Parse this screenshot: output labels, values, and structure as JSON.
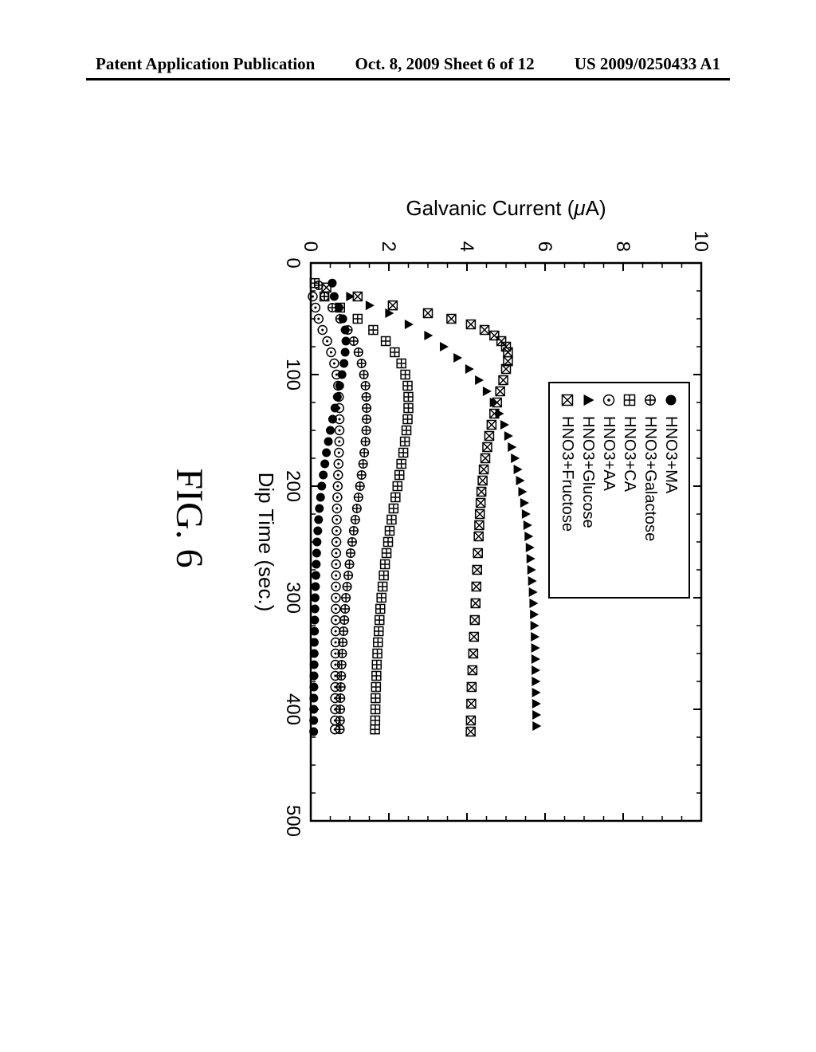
{
  "header": {
    "left": "Patent Application Publication",
    "center": "Oct. 8, 2009  Sheet 6 of 12",
    "right": "US 2009/0250433 A1"
  },
  "figure_label": "FIG. 6",
  "chart": {
    "type": "scatter",
    "xlabel": "Dip Time (sec.)",
    "ylabel": "Galvanic Current (μA)",
    "label_fontsize": 26,
    "tick_fontsize": 24,
    "xlim": [
      0,
      500
    ],
    "ylim": [
      0,
      10
    ],
    "xticks": [
      0,
      100,
      200,
      300,
      400,
      500
    ],
    "yticks": [
      0,
      2,
      4,
      6,
      8,
      10
    ],
    "background_color": "#ffffff",
    "axis_color": "#000000",
    "tick_length": 10,
    "legend": {
      "position": "top-center-right",
      "border_color": "#000000",
      "items": [
        {
          "marker": "filled_circle",
          "label": "HNO3+MA"
        },
        {
          "marker": "open_plus_diamond",
          "label": "HNO3+Galactose"
        },
        {
          "marker": "box_plus",
          "label": "HNO3+CA"
        },
        {
          "marker": "dot_circle",
          "label": "HNO3+AA"
        },
        {
          "marker": "filled_triangle",
          "label": "HNO3+Glucose"
        },
        {
          "marker": "box_x",
          "label": "HNO3+Fructose"
        }
      ]
    },
    "marker_size": 11,
    "series": [
      {
        "name": "HNO3+MA",
        "marker": "filled_circle",
        "color": "#000000",
        "points": [
          [
            18,
            0.55
          ],
          [
            30,
            0.6
          ],
          [
            40,
            0.72
          ],
          [
            50,
            0.82
          ],
          [
            60,
            0.88
          ],
          [
            70,
            0.9
          ],
          [
            80,
            0.88
          ],
          [
            90,
            0.85
          ],
          [
            100,
            0.8
          ],
          [
            110,
            0.74
          ],
          [
            120,
            0.68
          ],
          [
            130,
            0.62
          ],
          [
            140,
            0.56
          ],
          [
            150,
            0.5
          ],
          [
            160,
            0.45
          ],
          [
            170,
            0.4
          ],
          [
            180,
            0.36
          ],
          [
            190,
            0.32
          ],
          [
            200,
            0.28
          ],
          [
            210,
            0.25
          ],
          [
            220,
            0.22
          ],
          [
            230,
            0.2
          ],
          [
            240,
            0.18
          ],
          [
            250,
            0.16
          ],
          [
            260,
            0.15
          ],
          [
            270,
            0.14
          ],
          [
            280,
            0.13
          ],
          [
            290,
            0.12
          ],
          [
            300,
            0.11
          ],
          [
            310,
            0.105
          ],
          [
            320,
            0.1
          ],
          [
            330,
            0.095
          ],
          [
            340,
            0.09
          ],
          [
            350,
            0.088
          ],
          [
            360,
            0.085
          ],
          [
            370,
            0.082
          ],
          [
            380,
            0.08
          ],
          [
            390,
            0.078
          ],
          [
            400,
            0.076
          ],
          [
            410,
            0.075
          ],
          [
            420,
            0.074
          ]
        ]
      },
      {
        "name": "HNO3+Galactose",
        "marker": "open_plus_diamond",
        "color": "#000000",
        "points": [
          [
            20,
            0.2
          ],
          [
            30,
            0.35
          ],
          [
            40,
            0.55
          ],
          [
            50,
            0.75
          ],
          [
            60,
            0.95
          ],
          [
            70,
            1.1
          ],
          [
            80,
            1.22
          ],
          [
            90,
            1.3
          ],
          [
            100,
            1.36
          ],
          [
            110,
            1.4
          ],
          [
            120,
            1.42
          ],
          [
            130,
            1.43
          ],
          [
            140,
            1.43
          ],
          [
            150,
            1.42
          ],
          [
            160,
            1.4
          ],
          [
            170,
            1.37
          ],
          [
            180,
            1.34
          ],
          [
            190,
            1.3
          ],
          [
            200,
            1.26
          ],
          [
            210,
            1.22
          ],
          [
            220,
            1.18
          ],
          [
            230,
            1.14
          ],
          [
            240,
            1.1
          ],
          [
            250,
            1.06
          ],
          [
            260,
            1.02
          ],
          [
            270,
            0.99
          ],
          [
            280,
            0.96
          ],
          [
            290,
            0.93
          ],
          [
            300,
            0.9
          ],
          [
            310,
            0.88
          ],
          [
            320,
            0.86
          ],
          [
            330,
            0.84
          ],
          [
            340,
            0.82
          ],
          [
            350,
            0.805
          ],
          [
            360,
            0.79
          ],
          [
            370,
            0.78
          ],
          [
            380,
            0.77
          ],
          [
            390,
            0.76
          ],
          [
            400,
            0.755
          ],
          [
            410,
            0.75
          ],
          [
            418,
            0.745
          ]
        ]
      },
      {
        "name": "HNO3+CA",
        "marker": "box_plus",
        "color": "#000000",
        "points": [
          [
            18,
            0.1
          ],
          [
            30,
            0.35
          ],
          [
            40,
            0.75
          ],
          [
            50,
            1.2
          ],
          [
            60,
            1.6
          ],
          [
            70,
            1.92
          ],
          [
            80,
            2.15
          ],
          [
            90,
            2.32
          ],
          [
            100,
            2.42
          ],
          [
            110,
            2.48
          ],
          [
            120,
            2.5
          ],
          [
            130,
            2.5
          ],
          [
            140,
            2.48
          ],
          [
            150,
            2.45
          ],
          [
            160,
            2.41
          ],
          [
            170,
            2.37
          ],
          [
            180,
            2.32
          ],
          [
            190,
            2.27
          ],
          [
            200,
            2.22
          ],
          [
            210,
            2.17
          ],
          [
            220,
            2.12
          ],
          [
            230,
            2.07
          ],
          [
            240,
            2.02
          ],
          [
            250,
            1.98
          ],
          [
            260,
            1.94
          ],
          [
            270,
            1.9
          ],
          [
            280,
            1.87
          ],
          [
            290,
            1.84
          ],
          [
            300,
            1.81
          ],
          [
            310,
            1.78
          ],
          [
            320,
            1.76
          ],
          [
            330,
            1.74
          ],
          [
            340,
            1.72
          ],
          [
            350,
            1.705
          ],
          [
            360,
            1.69
          ],
          [
            370,
            1.68
          ],
          [
            380,
            1.67
          ],
          [
            390,
            1.66
          ],
          [
            400,
            1.655
          ],
          [
            410,
            1.65
          ],
          [
            418,
            1.645
          ]
        ]
      },
      {
        "name": "HNO3+AA",
        "marker": "dot_circle",
        "color": "#000000",
        "points": [
          [
            30,
            0.05
          ],
          [
            40,
            0.12
          ],
          [
            50,
            0.2
          ],
          [
            60,
            0.3
          ],
          [
            70,
            0.42
          ],
          [
            80,
            0.52
          ],
          [
            90,
            0.6
          ],
          [
            100,
            0.66
          ],
          [
            110,
            0.7
          ],
          [
            120,
            0.72
          ],
          [
            130,
            0.73
          ],
          [
            140,
            0.735
          ],
          [
            150,
            0.735
          ],
          [
            160,
            0.73
          ],
          [
            170,
            0.72
          ],
          [
            180,
            0.71
          ],
          [
            190,
            0.7
          ],
          [
            200,
            0.69
          ],
          [
            210,
            0.68
          ],
          [
            220,
            0.67
          ],
          [
            230,
            0.665
          ],
          [
            240,
            0.66
          ],
          [
            250,
            0.655
          ],
          [
            260,
            0.65
          ],
          [
            270,
            0.648
          ],
          [
            280,
            0.646
          ],
          [
            290,
            0.644
          ],
          [
            300,
            0.642
          ],
          [
            310,
            0.64
          ],
          [
            320,
            0.638
          ],
          [
            330,
            0.636
          ],
          [
            340,
            0.634
          ],
          [
            350,
            0.632
          ],
          [
            360,
            0.63
          ],
          [
            370,
            0.628
          ],
          [
            380,
            0.626
          ],
          [
            390,
            0.624
          ],
          [
            400,
            0.622
          ],
          [
            410,
            0.62
          ],
          [
            418,
            0.618
          ]
        ]
      },
      {
        "name": "HNO3+Glucose",
        "marker": "filled_triangle",
        "color": "#000000",
        "points": [
          [
            30,
            1.0
          ],
          [
            38,
            1.5
          ],
          [
            45,
            2.0
          ],
          [
            55,
            2.5
          ],
          [
            65,
            3.0
          ],
          [
            75,
            3.4
          ],
          [
            85,
            3.75
          ],
          [
            95,
            4.05
          ],
          [
            105,
            4.3
          ],
          [
            115,
            4.5
          ],
          [
            125,
            4.68
          ],
          [
            135,
            4.82
          ],
          [
            145,
            4.95
          ],
          [
            155,
            5.05
          ],
          [
            165,
            5.14
          ],
          [
            175,
            5.22
          ],
          [
            185,
            5.29
          ],
          [
            195,
            5.35
          ],
          [
            205,
            5.41
          ],
          [
            215,
            5.46
          ],
          [
            225,
            5.5
          ],
          [
            235,
            5.54
          ],
          [
            245,
            5.57
          ],
          [
            255,
            5.6
          ],
          [
            265,
            5.62
          ],
          [
            275,
            5.64
          ],
          [
            285,
            5.66
          ],
          [
            295,
            5.68
          ],
          [
            305,
            5.695
          ],
          [
            315,
            5.71
          ],
          [
            325,
            5.72
          ],
          [
            335,
            5.73
          ],
          [
            345,
            5.74
          ],
          [
            355,
            5.745
          ],
          [
            365,
            5.75
          ],
          [
            375,
            5.755
          ],
          [
            385,
            5.76
          ],
          [
            395,
            5.765
          ],
          [
            405,
            5.77
          ],
          [
            415,
            5.773
          ]
        ]
      },
      {
        "name": "HNO3+Fructose",
        "marker": "box_x",
        "color": "#000000",
        "points": [
          [
            22,
            0.4
          ],
          [
            30,
            1.2
          ],
          [
            38,
            2.1
          ],
          [
            45,
            3.0
          ],
          [
            50,
            3.6
          ],
          [
            55,
            4.1
          ],
          [
            60,
            4.45
          ],
          [
            65,
            4.7
          ],
          [
            70,
            4.88
          ],
          [
            75,
            5.0
          ],
          [
            80,
            5.05
          ],
          [
            88,
            5.05
          ],
          [
            95,
            5.0
          ],
          [
            105,
            4.93
          ],
          [
            115,
            4.85
          ],
          [
            125,
            4.77
          ],
          [
            135,
            4.7
          ],
          [
            145,
            4.63
          ],
          [
            155,
            4.57
          ],
          [
            165,
            4.52
          ],
          [
            175,
            4.47
          ],
          [
            185,
            4.43
          ],
          [
            195,
            4.4
          ],
          [
            205,
            4.37
          ],
          [
            215,
            4.35
          ],
          [
            225,
            4.33
          ],
          [
            235,
            4.315
          ],
          [
            245,
            4.3
          ],
          [
            260,
            4.28
          ],
          [
            275,
            4.26
          ],
          [
            290,
            4.24
          ],
          [
            305,
            4.22
          ],
          [
            320,
            4.2
          ],
          [
            335,
            4.18
          ],
          [
            350,
            4.16
          ],
          [
            365,
            4.14
          ],
          [
            380,
            4.12
          ],
          [
            395,
            4.11
          ],
          [
            410,
            4.1
          ],
          [
            420,
            4.095
          ]
        ]
      }
    ]
  }
}
